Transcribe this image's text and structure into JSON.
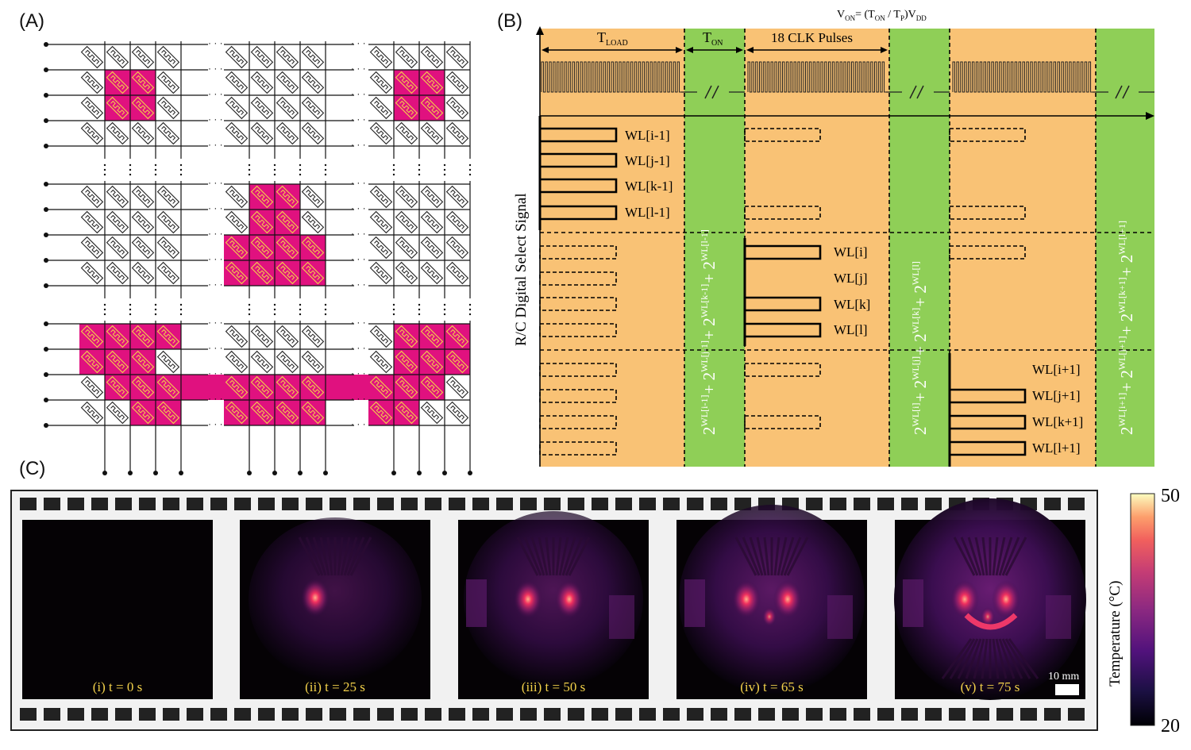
{
  "panels": {
    "a": "(A)",
    "b": "(B)",
    "c": "(C)"
  },
  "panel_b": {
    "formula_prefix": "V",
    "formula_prefix_sub": "ON",
    "formula_body": "= (T",
    "formula_sub1": "ON",
    "formula_mid": " / T",
    "formula_sub2": "P",
    "formula_end": ")V",
    "formula_sub3": "DD",
    "t_load": "T",
    "t_load_sub": "LOAD",
    "t_on": "T",
    "t_on_sub": "ON",
    "clk_pulses": "18 CLK Pulses",
    "y_label": "R/C Digital Select Signal",
    "group1_labels": [
      "WL[i-1]",
      "WL[j-1]",
      "WL[k-1]",
      "WL[l-1]"
    ],
    "group2_labels": [
      "WL[i]",
      "WL[j]",
      "WL[k]",
      "WL[l]"
    ],
    "group3_labels": [
      "WL[i+1]",
      "WL[j+1]",
      "WL[k+1]",
      "WL[l+1]"
    ],
    "eq1": [
      "WL[i-1]",
      "WL[j-1]",
      "WL[k-1]",
      "WL[l-1]"
    ],
    "eq2": [
      "WL[i]",
      "WL[j]",
      "WL[k]",
      "WL[l]"
    ],
    "eq3": [
      "WL[i+1]",
      "WL[j+1]",
      "WL[k+1]",
      "WL[l+1]"
    ],
    "eq_base": "2",
    "eq_plus": "+"
  },
  "panel_c": {
    "frames": [
      {
        "caption": "(i) t = 0 s",
        "stage": 0
      },
      {
        "caption": "(ii) t = 25 s",
        "stage": 1
      },
      {
        "caption": "(iii) t = 50 s",
        "stage": 2
      },
      {
        "caption": "(iv) t = 65 s",
        "stage": 3
      },
      {
        "caption": "(v) t = 75 s",
        "stage": 4
      }
    ],
    "scale_bar": "10 mm",
    "colorbar": {
      "max": "50",
      "min": "20",
      "label": "Temperature (°C)"
    }
  },
  "colors": {
    "magenta": "#e0117f",
    "orange": "#f9c275",
    "green": "#8fcf57",
    "film": "#f1f1f1"
  }
}
